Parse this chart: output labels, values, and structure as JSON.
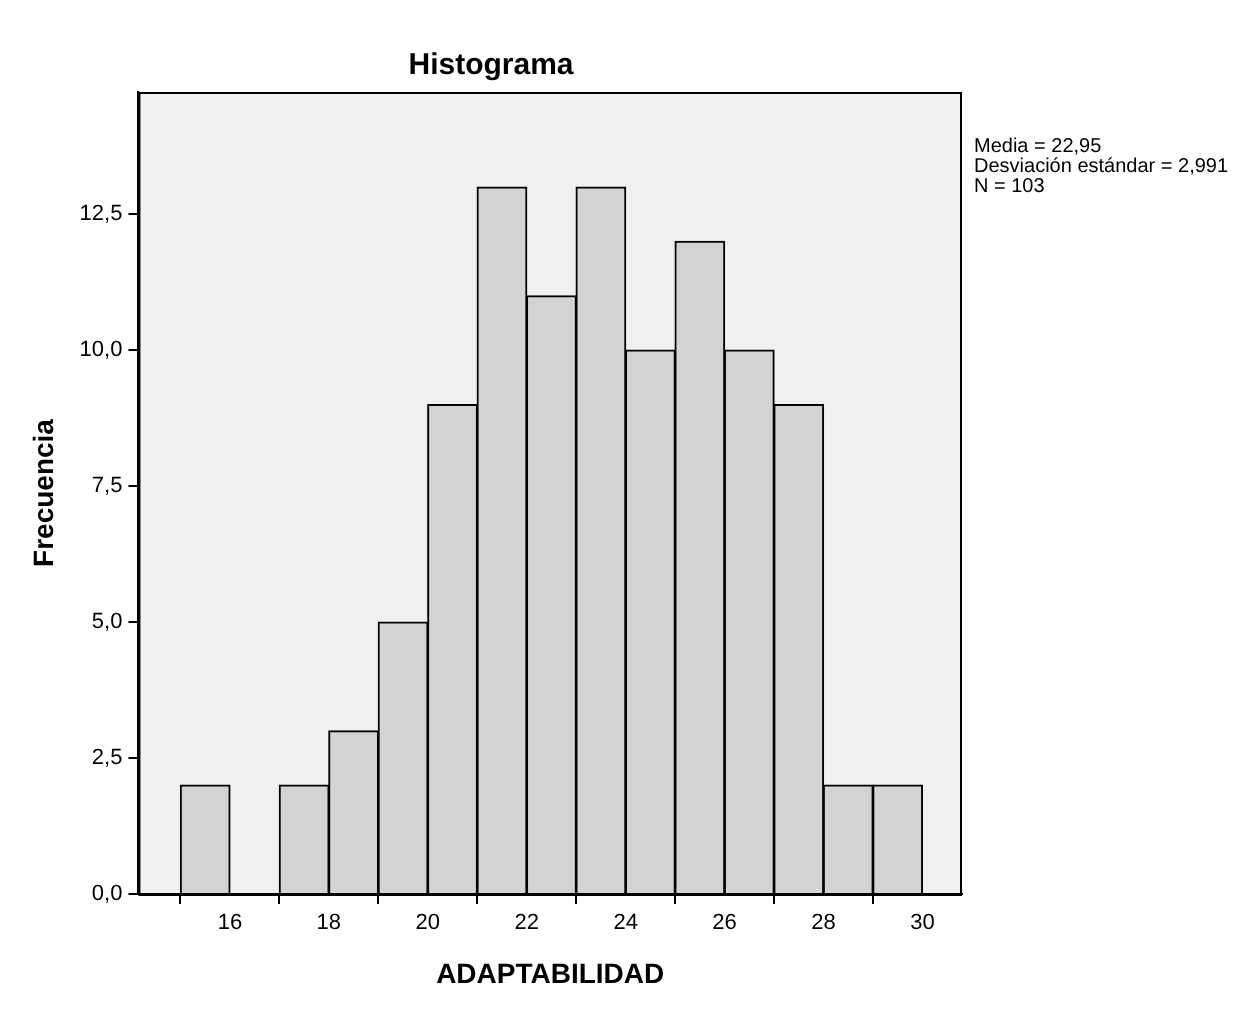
{
  "chart_data": {
    "type": "histogram",
    "title": "Histograma",
    "xlabel": "ADAPTABILIDAD",
    "ylabel": "Frecuencia",
    "bins": [
      15,
      16,
      17,
      18,
      19,
      20,
      21,
      22,
      23,
      24,
      25,
      26,
      27,
      28,
      29,
      30
    ],
    "values": [
      2,
      0,
      2,
      3,
      5,
      9,
      13,
      11,
      13,
      10,
      12,
      10,
      9,
      2,
      2
    ],
    "color": "#d3d3d3",
    "xlim": [
      14.15,
      30.8
    ],
    "xticks": [
      16,
      18,
      20,
      22,
      24,
      26,
      28,
      30
    ],
    "ylim": [
      0,
      14.75
    ],
    "yticks": [
      {
        "value": 0,
        "label": "0,0"
      },
      {
        "value": 2.5,
        "label": "2,5"
      },
      {
        "value": 5,
        "label": "5,0"
      },
      {
        "value": 7.5,
        "label": "7,5"
      },
      {
        "value": 10,
        "label": "10,0"
      },
      {
        "value": 12.5,
        "label": "12,5"
      }
    ],
    "grid": false,
    "legend": false,
    "annotations": [
      "Media = 22,95",
      "Desviación estándar = 2,991",
      "N = 103"
    ]
  }
}
